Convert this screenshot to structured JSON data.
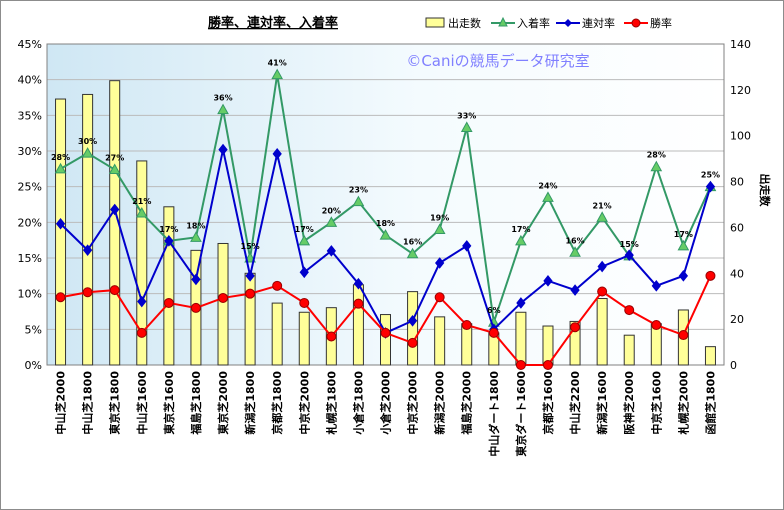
{
  "title": "勝率、連対率、入着率",
  "watermark": "©Caniの競馬データ研究室",
  "right_axis_label": "出走数",
  "legend": [
    {
      "key": "runs",
      "label": "出走数"
    },
    {
      "key": "place",
      "label": "入着率"
    },
    {
      "key": "quinella",
      "label": "連対率"
    },
    {
      "key": "win",
      "label": "勝率"
    }
  ],
  "colors": {
    "runs_fill": "#ffff99",
    "runs_stroke": "#333333",
    "place": "#339966",
    "quinella": "#0000cc",
    "win": "#ff0000",
    "grid": "#bbbbbb"
  },
  "chart_data": {
    "type": "bar",
    "title": "勝率、連対率、入着率",
    "categories": [
      "中山芝2000",
      "中山芝1800",
      "東京芝1800",
      "中山芝1600",
      "東京芝1600",
      "福島芝1800",
      "東京芝2000",
      "新潟芝1800",
      "京都芝1800",
      "中京芝2000",
      "札幌芝1800",
      "小倉芝1800",
      "小倉芝2000",
      "中京芝2000",
      "新潟芝2000",
      "福島芝2000",
      "中山ダート1800",
      "東京ダート1600",
      "京都芝1600",
      "中山芝2200",
      "新潟芝1600",
      "阪神芝2000",
      "中京芝1600",
      "札幌芝2000",
      "函館芝1800"
    ],
    "y_left": {
      "min": 0,
      "max": 45,
      "step": 5,
      "format": "percent"
    },
    "y_right": {
      "min": 0,
      "max": 140,
      "step": 20,
      "label": "出走数"
    },
    "series": [
      {
        "name": "出走数",
        "type": "bar",
        "axis": "right",
        "values": [
          116,
          118,
          124,
          89,
          69,
          50,
          53,
          40,
          27,
          23,
          25,
          35,
          22,
          32,
          21,
          18,
          14,
          23,
          17,
          19,
          29,
          13,
          18,
          24,
          8
        ]
      },
      {
        "name": "入着率",
        "type": "line",
        "axis": "left",
        "values": [
          27.5,
          29.7,
          27.4,
          21.3,
          17.4,
          17.9,
          35.8,
          15.0,
          40.7,
          17.4,
          20.0,
          22.9,
          18.2,
          15.6,
          19.0,
          33.3,
          6.0,
          17.4,
          23.5,
          15.8,
          20.7,
          15.3,
          27.8,
          16.7,
          25.0
        ]
      },
      {
        "name": "連対率",
        "type": "line",
        "axis": "left",
        "values": [
          19.8,
          16.1,
          21.8,
          8.9,
          17.4,
          12.0,
          30.2,
          12.5,
          29.6,
          13.0,
          16.0,
          11.4,
          4.5,
          6.2,
          14.3,
          16.7,
          5.0,
          8.7,
          11.8,
          10.5,
          13.8,
          15.4,
          11.1,
          12.5,
          25.0
        ]
      },
      {
        "name": "勝率",
        "type": "line",
        "axis": "left",
        "values": [
          9.5,
          10.2,
          10.5,
          4.5,
          8.7,
          8.0,
          9.4,
          10.0,
          11.1,
          8.7,
          4.0,
          8.6,
          4.5,
          3.1,
          9.5,
          5.6,
          4.5,
          0,
          0,
          5.3,
          10.3,
          7.7,
          5.6,
          4.2,
          12.5
        ]
      }
    ],
    "place_labels": [
      "28%",
      "30%",
      "27%",
      "21%",
      "17%",
      "18%",
      "36%",
      "15%",
      "41%",
      "17%",
      "20%",
      "23%",
      "18%",
      "16%",
      "19%",
      "33%",
      "6%",
      "17%",
      "24%",
      "16%",
      "21%",
      "15%",
      "28%",
      "17%",
      "25%"
    ]
  }
}
